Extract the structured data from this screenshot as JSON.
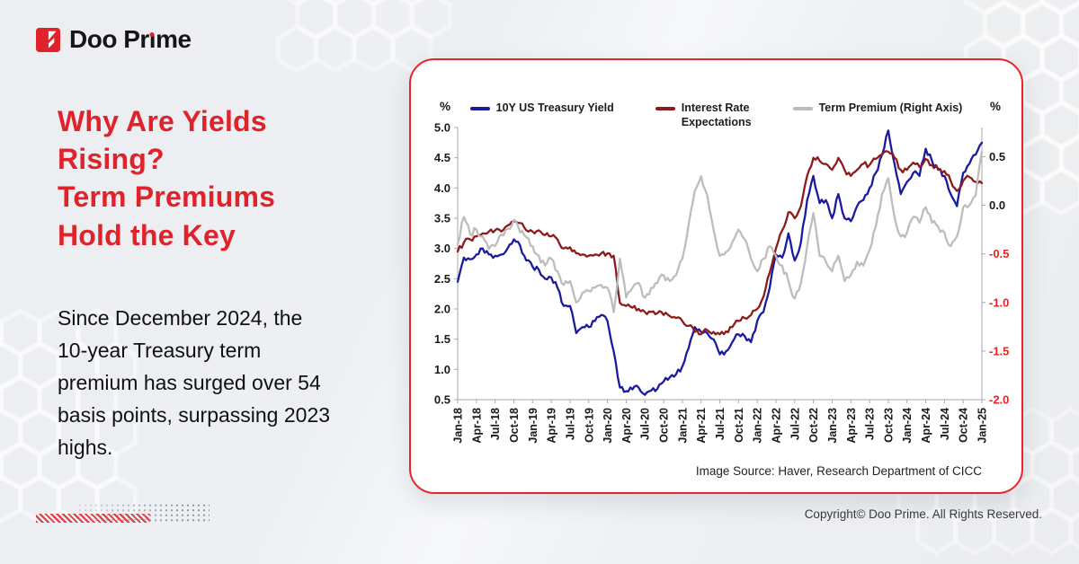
{
  "brand": {
    "logo_text_pre": "Doo Pr",
    "logo_text_post": "me"
  },
  "headline": {
    "lines": [
      "Why Are Yields",
      "Rising?",
      "Term Premiums",
      "Hold the Key"
    ]
  },
  "body": {
    "lines": [
      "Since December 2024, the",
      "10-year Treasury term",
      "premium has surged over 54",
      "basis points, surpassing 2023",
      "highs."
    ],
    "full_text": "Since December 2024, the 10-year Treasury term premium has surged over 54 basis points, surpassing 2023 highs."
  },
  "chart_card": {
    "source_note": "Image Source: Haver, Research Department of CICC"
  },
  "footer": {
    "copyright": "Copyright© Doo Prime. All Rights Reserved."
  },
  "colors": {
    "brand_red": "#e0232b",
    "card_border": "#e8232b",
    "axis_line": "#a9a9a9",
    "axis_label": "#1a1a1a",
    "negative_tick": "#e8231f",
    "series_blue": "#1b1b9e",
    "series_dark_red": "#8d1b1b",
    "series_gray": "#bdbdbd"
  },
  "chart_data": {
    "type": "line",
    "title": "",
    "frequency": "monthly",
    "x_start": "Jan-18",
    "x_end": "Jan-25",
    "grid": false,
    "legend_position": "top",
    "x_tick_labels": [
      "Jan-18",
      "Apr-18",
      "Jul-18",
      "Oct-18",
      "Jan-19",
      "Apr-19",
      "Jul-19",
      "Oct-19",
      "Jan-20",
      "Apr-20",
      "Jul-20",
      "Oct-20",
      "Jan-21",
      "Apr-21",
      "Jul-21",
      "Oct-21",
      "Jan-22",
      "Apr-22",
      "Jul-22",
      "Oct-22",
      "Jan-23",
      "Apr-23",
      "Jul-23",
      "Oct-23",
      "Jan-24",
      "Apr-24",
      "Jul-24",
      "Oct-24",
      "Jan-25"
    ],
    "left_axis": {
      "unit": "%",
      "min": 0.5,
      "max": 5.0,
      "tick_labels": [
        "5.0",
        "4.5",
        "4.0",
        "3.5",
        "3.0",
        "2.5",
        "2.0",
        "1.5",
        "1.0",
        "0.5"
      ]
    },
    "right_axis": {
      "unit": "%",
      "min": -2.0,
      "max": 0.8,
      "tick_labels": [
        "0.5",
        "0.0",
        "-0.5",
        "-1.0",
        "-1.5",
        "-2.0"
      ]
    },
    "series": [
      {
        "name": "10Y US Treasury Yield",
        "axis": "left",
        "color": "#1b1b9e",
        "values": [
          2.45,
          2.85,
          2.82,
          2.9,
          3.0,
          2.9,
          2.88,
          2.9,
          3.0,
          3.15,
          3.05,
          2.8,
          2.7,
          2.65,
          2.5,
          2.52,
          2.35,
          2.05,
          2.05,
          1.6,
          1.7,
          1.7,
          1.8,
          1.9,
          1.8,
          1.3,
          0.7,
          0.64,
          0.67,
          0.7,
          0.58,
          0.65,
          0.68,
          0.8,
          0.87,
          0.92,
          1.05,
          1.35,
          1.7,
          1.62,
          1.6,
          1.5,
          1.25,
          1.3,
          1.45,
          1.58,
          1.55,
          1.45,
          1.8,
          1.95,
          2.35,
          2.9,
          2.85,
          3.25,
          2.8,
          3.1,
          3.8,
          4.2,
          3.75,
          3.8,
          3.5,
          3.9,
          3.5,
          3.45,
          3.7,
          3.8,
          4.0,
          4.25,
          4.55,
          4.95,
          4.4,
          3.9,
          4.1,
          4.25,
          4.2,
          4.65,
          4.45,
          4.3,
          4.2,
          3.9,
          3.7,
          4.25,
          4.4,
          4.55,
          4.75
        ]
      },
      {
        "name": "Interest Rate Expectations",
        "legend_lines": [
          "Interest Rate",
          "Expectations"
        ],
        "axis": "left",
        "color": "#8d1b1b",
        "values": [
          2.95,
          3.1,
          3.15,
          3.2,
          3.25,
          3.28,
          3.3,
          3.28,
          3.38,
          3.45,
          3.42,
          3.3,
          3.28,
          3.3,
          3.22,
          3.2,
          3.15,
          3.0,
          3.02,
          2.92,
          2.9,
          2.88,
          2.9,
          2.92,
          2.92,
          2.88,
          2.1,
          2.05,
          2.02,
          2.0,
          1.95,
          1.95,
          1.93,
          1.9,
          1.88,
          1.85,
          1.8,
          1.72,
          1.62,
          1.58,
          1.65,
          1.62,
          1.58,
          1.63,
          1.7,
          1.8,
          1.85,
          1.9,
          2.0,
          2.2,
          2.6,
          3.0,
          3.3,
          3.6,
          3.5,
          3.7,
          4.2,
          4.5,
          4.45,
          4.4,
          4.3,
          4.5,
          4.3,
          4.2,
          4.3,
          4.4,
          4.38,
          4.48,
          4.55,
          4.6,
          4.5,
          4.3,
          4.3,
          4.42,
          4.35,
          4.48,
          4.38,
          4.32,
          4.28,
          4.12,
          3.95,
          4.12,
          4.18,
          4.1,
          4.08
        ]
      },
      {
        "name": "Term Premium (Right Axis)",
        "axis": "right",
        "color": "#bdbdbd",
        "values": [
          -0.4,
          -0.12,
          -0.3,
          -0.25,
          -0.32,
          -0.45,
          -0.42,
          -0.3,
          -0.24,
          -0.15,
          -0.28,
          -0.33,
          -0.42,
          -0.52,
          -0.62,
          -0.55,
          -0.68,
          -0.82,
          -0.78,
          -1.0,
          -0.9,
          -0.88,
          -0.85,
          -0.82,
          -0.85,
          -1.1,
          -0.55,
          -0.95,
          -0.85,
          -0.8,
          -0.95,
          -0.85,
          -0.8,
          -0.72,
          -0.78,
          -0.72,
          -0.55,
          -0.2,
          0.15,
          0.3,
          0.1,
          -0.25,
          -0.52,
          -0.48,
          -0.38,
          -0.25,
          -0.35,
          -0.55,
          -0.68,
          -0.55,
          -0.42,
          -0.52,
          -0.62,
          -0.78,
          -0.96,
          -0.8,
          -0.42,
          -0.08,
          -0.52,
          -0.58,
          -0.68,
          -0.52,
          -0.78,
          -0.72,
          -0.58,
          -0.62,
          -0.46,
          -0.22,
          0.12,
          0.28,
          -0.12,
          -0.32,
          -0.28,
          -0.12,
          -0.18,
          -0.02,
          -0.18,
          -0.22,
          -0.28,
          -0.42,
          -0.32,
          -0.02,
          0.0,
          0.1,
          0.55
        ]
      }
    ]
  }
}
